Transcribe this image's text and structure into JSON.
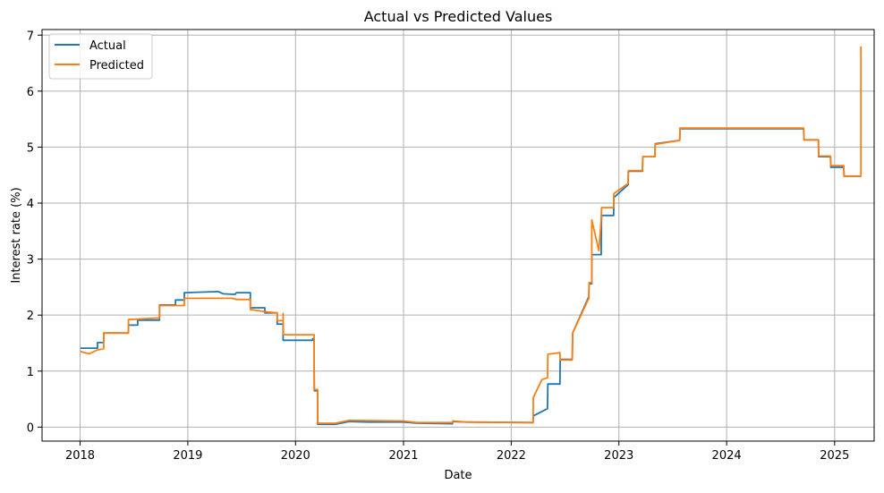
{
  "chart_data": {
    "type": "line",
    "title": "Actual vs Predicted Values",
    "xlabel": "Date",
    "ylabel": "Interest rate (%)",
    "x_ticks": [
      "2018",
      "2019",
      "2020",
      "2021",
      "2022",
      "2023",
      "2024",
      "2025"
    ],
    "y_ticks": [
      "0",
      "1",
      "2",
      "3",
      "4",
      "5",
      "6",
      "7"
    ],
    "xlim": [
      "2017-08-25",
      "2025-05-15"
    ],
    "ylim": [
      -0.25,
      7.1
    ],
    "grid": true,
    "legend_position": "upper-left",
    "series": [
      {
        "name": "Actual",
        "color": "#1f77b4",
        "points": [
          [
            "2018-01-02",
            1.41
          ],
          [
            "2018-03-01",
            1.41
          ],
          [
            "2018-03-01",
            1.51
          ],
          [
            "2018-03-22",
            1.51
          ],
          [
            "2018-03-22",
            1.68
          ],
          [
            "2018-06-14",
            1.68
          ],
          [
            "2018-06-14",
            1.82
          ],
          [
            "2018-07-15",
            1.82
          ],
          [
            "2018-07-15",
            1.91
          ],
          [
            "2018-09-27",
            1.91
          ],
          [
            "2018-09-27",
            2.18
          ],
          [
            "2018-11-20",
            2.18
          ],
          [
            "2018-11-20",
            2.27
          ],
          [
            "2018-12-20",
            2.27
          ],
          [
            "2018-12-20",
            2.4
          ],
          [
            "2019-04-15",
            2.42
          ],
          [
            "2019-05-01",
            2.38
          ],
          [
            "2019-06-10",
            2.37
          ],
          [
            "2019-06-15",
            2.4
          ],
          [
            "2019-08-01",
            2.4
          ],
          [
            "2019-08-01",
            2.13
          ],
          [
            "2019-09-19",
            2.13
          ],
          [
            "2019-09-19",
            2.04
          ],
          [
            "2019-10-31",
            2.04
          ],
          [
            "2019-10-31",
            1.84
          ],
          [
            "2019-11-20",
            1.84
          ],
          [
            "2019-11-20",
            1.55
          ],
          [
            "2020-02-28",
            1.55
          ],
          [
            "2020-02-28",
            1.58
          ],
          [
            "2020-03-04",
            1.58
          ],
          [
            "2020-03-04",
            1.09
          ],
          [
            "2020-03-05",
            0.65
          ],
          [
            "2020-03-16",
            0.65
          ],
          [
            "2020-03-16",
            0.05
          ],
          [
            "2020-05-15",
            0.05
          ],
          [
            "2020-07-01",
            0.1
          ],
          [
            "2020-09-01",
            0.09
          ],
          [
            "2021-01-01",
            0.09
          ],
          [
            "2021-02-15",
            0.07
          ],
          [
            "2021-06-16",
            0.06
          ],
          [
            "2021-06-17",
            0.1
          ],
          [
            "2021-08-01",
            0.09
          ],
          [
            "2022-03-16",
            0.08
          ],
          [
            "2022-03-17",
            0.2
          ],
          [
            "2022-05-04",
            0.33
          ],
          [
            "2022-05-05",
            0.77
          ],
          [
            "2022-06-15",
            0.77
          ],
          [
            "2022-06-16",
            1.21
          ],
          [
            "2022-07-27",
            1.21
          ],
          [
            "2022-07-28",
            1.68
          ],
          [
            "2022-09-21",
            2.33
          ],
          [
            "2022-09-22",
            2.56
          ],
          [
            "2022-10-01",
            2.56
          ],
          [
            "2022-10-01",
            3.08
          ],
          [
            "2022-11-02",
            3.08
          ],
          [
            "2022-11-03",
            3.78
          ],
          [
            "2022-12-14",
            3.78
          ],
          [
            "2022-12-15",
            4.1
          ],
          [
            "2023-02-01",
            4.33
          ],
          [
            "2023-02-02",
            4.57
          ],
          [
            "2023-03-22",
            4.57
          ],
          [
            "2023-03-23",
            4.83
          ],
          [
            "2023-05-03",
            4.83
          ],
          [
            "2023-05-04",
            5.06
          ],
          [
            "2023-07-26",
            5.12
          ],
          [
            "2023-07-27",
            5.33
          ],
          [
            "2024-09-18",
            5.33
          ],
          [
            "2024-09-19",
            5.13
          ],
          [
            "2024-11-07",
            5.13
          ],
          [
            "2024-11-08",
            4.83
          ],
          [
            "2024-12-18",
            4.83
          ],
          [
            "2024-12-19",
            4.64
          ],
          [
            "2025-02-01",
            4.64
          ],
          [
            "2025-02-02",
            4.48
          ],
          [
            "2025-03-31",
            4.48
          ]
        ]
      },
      {
        "name": "Predicted",
        "color": "#ff7f0e",
        "points": [
          [
            "2018-01-02",
            1.35
          ],
          [
            "2018-02-01",
            1.31
          ],
          [
            "2018-03-01",
            1.38
          ],
          [
            "2018-03-22",
            1.4
          ],
          [
            "2018-03-22",
            1.68
          ],
          [
            "2018-06-14",
            1.68
          ],
          [
            "2018-06-14",
            1.92
          ],
          [
            "2018-09-27",
            1.95
          ],
          [
            "2018-09-27",
            2.17
          ],
          [
            "2018-12-20",
            2.17
          ],
          [
            "2018-12-20",
            2.3
          ],
          [
            "2019-06-01",
            2.3
          ],
          [
            "2019-06-15",
            2.28
          ],
          [
            "2019-08-01",
            2.28
          ],
          [
            "2019-08-01",
            2.1
          ],
          [
            "2019-09-19",
            2.06
          ],
          [
            "2019-10-31",
            2.04
          ],
          [
            "2019-10-31",
            1.9
          ],
          [
            "2019-11-20",
            1.9
          ],
          [
            "2019-11-20",
            2.03
          ],
          [
            "2019-11-21",
            1.65
          ],
          [
            "2020-03-04",
            1.65
          ],
          [
            "2020-03-04",
            0.67
          ],
          [
            "2020-03-16",
            0.67
          ],
          [
            "2020-03-16",
            0.07
          ],
          [
            "2020-05-15",
            0.07
          ],
          [
            "2020-07-01",
            0.12
          ],
          [
            "2021-01-01",
            0.11
          ],
          [
            "2021-02-15",
            0.08
          ],
          [
            "2021-06-16",
            0.08
          ],
          [
            "2021-06-17",
            0.11
          ],
          [
            "2021-08-01",
            0.09
          ],
          [
            "2022-03-16",
            0.08
          ],
          [
            "2022-03-17",
            0.53
          ],
          [
            "2022-04-15",
            0.85
          ],
          [
            "2022-05-04",
            0.88
          ],
          [
            "2022-05-05",
            1.3
          ],
          [
            "2022-06-15",
            1.33
          ],
          [
            "2022-06-16",
            1.2
          ],
          [
            "2022-07-27",
            1.2
          ],
          [
            "2022-07-28",
            1.68
          ],
          [
            "2022-09-21",
            2.3
          ],
          [
            "2022-09-22",
            2.58
          ],
          [
            "2022-10-01",
            2.58
          ],
          [
            "2022-10-01",
            3.7
          ],
          [
            "2022-10-25",
            3.15
          ],
          [
            "2022-11-02",
            3.7
          ],
          [
            "2022-11-03",
            3.92
          ],
          [
            "2022-12-14",
            3.92
          ],
          [
            "2022-12-15",
            4.17
          ],
          [
            "2023-02-01",
            4.35
          ],
          [
            "2023-02-02",
            4.58
          ],
          [
            "2023-03-22",
            4.58
          ],
          [
            "2023-03-23",
            4.83
          ],
          [
            "2023-05-03",
            4.83
          ],
          [
            "2023-05-04",
            5.05
          ],
          [
            "2023-07-26",
            5.12
          ],
          [
            "2023-07-27",
            5.34
          ],
          [
            "2024-09-18",
            5.34
          ],
          [
            "2024-09-19",
            5.13
          ],
          [
            "2024-11-07",
            5.13
          ],
          [
            "2024-11-08",
            4.84
          ],
          [
            "2024-12-18",
            4.84
          ],
          [
            "2024-12-19",
            4.67
          ],
          [
            "2025-02-01",
            4.67
          ],
          [
            "2025-02-02",
            4.48
          ],
          [
            "2025-03-31",
            4.48
          ],
          [
            "2025-03-31",
            6.8
          ]
        ]
      }
    ]
  }
}
